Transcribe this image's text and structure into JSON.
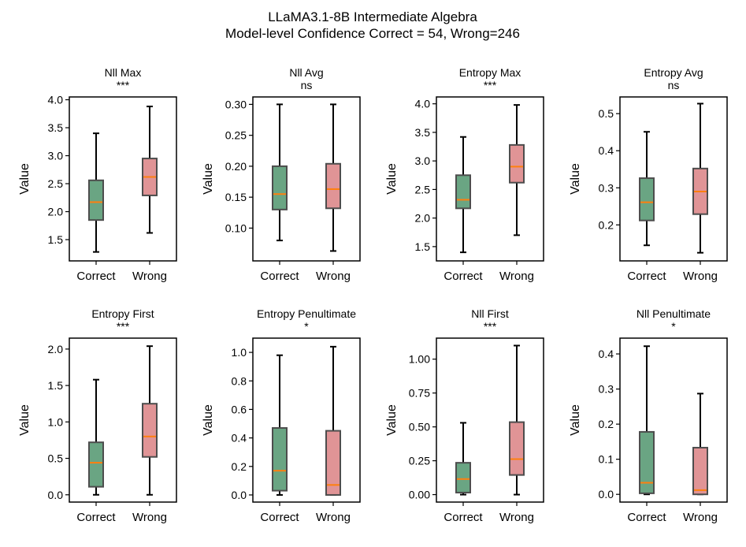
{
  "title_line1": "LLaMA3.1-8B Intermediate Algebra",
  "title_line2": "Model-level Confidence Correct = 54, Wrong=246",
  "colors": {
    "correct": "#6aa583",
    "wrong": "#e09496",
    "median": "#ff7f0e",
    "edge": "#4d4d4d"
  },
  "chart_data": [
    {
      "type": "box",
      "title": "Nll Max",
      "significance": "***",
      "ylabel": "Value",
      "categories": [
        "Correct",
        "Wrong"
      ],
      "ylim": [
        1.12,
        4.05
      ],
      "yticks": [
        1.5,
        2.0,
        2.5,
        3.0,
        3.5,
        4.0
      ],
      "tick_labels": [
        "1.5",
        "2.0",
        "2.5",
        "3.0",
        "3.5",
        "4.0"
      ],
      "boxes": [
        {
          "whislo": 1.28,
          "q1": 1.85,
          "med": 2.17,
          "q3": 2.56,
          "whishi": 3.4
        },
        {
          "whislo": 1.62,
          "q1": 2.29,
          "med": 2.62,
          "q3": 2.95,
          "whishi": 3.88
        }
      ]
    },
    {
      "type": "box",
      "title": "Nll Avg",
      "significance": "ns",
      "ylabel": "Value",
      "categories": [
        "Correct",
        "Wrong"
      ],
      "ylim": [
        0.047,
        0.312
      ],
      "yticks": [
        0.1,
        0.15,
        0.2,
        0.25,
        0.3
      ],
      "tick_labels": [
        "0.10",
        "0.15",
        "0.20",
        "0.25",
        "0.30"
      ],
      "boxes": [
        {
          "whislo": 0.08,
          "q1": 0.13,
          "med": 0.155,
          "q3": 0.2,
          "whishi": 0.3
        },
        {
          "whislo": 0.063,
          "q1": 0.132,
          "med": 0.163,
          "q3": 0.204,
          "whishi": 0.3
        }
      ]
    },
    {
      "type": "box",
      "title": "Entropy Max",
      "significance": "***",
      "ylabel": "Value",
      "categories": [
        "Correct",
        "Wrong"
      ],
      "ylim": [
        1.25,
        4.12
      ],
      "yticks": [
        1.5,
        2.0,
        2.5,
        3.0,
        3.5,
        4.0
      ],
      "tick_labels": [
        "1.5",
        "2.0",
        "2.5",
        "3.0",
        "3.5",
        "4.0"
      ],
      "boxes": [
        {
          "whislo": 1.4,
          "q1": 2.17,
          "med": 2.32,
          "q3": 2.75,
          "whishi": 3.42
        },
        {
          "whislo": 1.7,
          "q1": 2.62,
          "med": 2.9,
          "q3": 3.28,
          "whishi": 3.98
        }
      ]
    },
    {
      "type": "box",
      "title": "Entropy Avg",
      "significance": "ns",
      "ylabel": "Value",
      "categories": [
        "Correct",
        "Wrong"
      ],
      "ylim": [
        0.103,
        0.545
      ],
      "yticks": [
        0.2,
        0.3,
        0.4,
        0.5
      ],
      "tick_labels": [
        "0.2",
        "0.3",
        "0.4",
        "0.5"
      ],
      "boxes": [
        {
          "whislo": 0.145,
          "q1": 0.212,
          "med": 0.261,
          "q3": 0.326,
          "whishi": 0.451
        },
        {
          "whislo": 0.125,
          "q1": 0.229,
          "med": 0.29,
          "q3": 0.352,
          "whishi": 0.527
        }
      ]
    },
    {
      "type": "box",
      "title": "Entropy First",
      "significance": "***",
      "ylabel": "Value",
      "categories": [
        "Correct",
        "Wrong"
      ],
      "ylim": [
        -0.1,
        2.15
      ],
      "yticks": [
        0.0,
        0.5,
        1.0,
        1.5,
        2.0
      ],
      "tick_labels": [
        "0.0",
        "0.5",
        "1.0",
        "1.5",
        "2.0"
      ],
      "boxes": [
        {
          "whislo": 0.0,
          "q1": 0.11,
          "med": 0.44,
          "q3": 0.72,
          "whishi": 1.58
        },
        {
          "whislo": 0.0,
          "q1": 0.52,
          "med": 0.8,
          "q3": 1.25,
          "whishi": 2.04
        }
      ]
    },
    {
      "type": "box",
      "title": "Entropy Penultimate",
      "significance": "*",
      "ylabel": "Value",
      "categories": [
        "Correct",
        "Wrong"
      ],
      "ylim": [
        -0.05,
        1.1
      ],
      "yticks": [
        0.0,
        0.2,
        0.4,
        0.6,
        0.8,
        1.0
      ],
      "tick_labels": [
        "0.0",
        "0.2",
        "0.4",
        "0.6",
        "0.8",
        "1.0"
      ],
      "boxes": [
        {
          "whislo": 0.0,
          "q1": 0.03,
          "med": 0.17,
          "q3": 0.47,
          "whishi": 0.98
        },
        {
          "whislo": 0.0,
          "q1": 0.0,
          "med": 0.07,
          "q3": 0.45,
          "whishi": 1.04
        }
      ]
    },
    {
      "type": "box",
      "title": "Nll First",
      "significance": "***",
      "ylabel": "Value",
      "categories": [
        "Correct",
        "Wrong"
      ],
      "ylim": [
        -0.055,
        1.155
      ],
      "yticks": [
        0.0,
        0.25,
        0.5,
        0.75,
        1.0
      ],
      "tick_labels": [
        "0.00",
        "0.25",
        "0.50",
        "0.75",
        "1.00"
      ],
      "boxes": [
        {
          "whislo": 0.0,
          "q1": 0.015,
          "med": 0.115,
          "q3": 0.235,
          "whishi": 0.53
        },
        {
          "whislo": 0.0,
          "q1": 0.145,
          "med": 0.262,
          "q3": 0.535,
          "whishi": 1.1
        }
      ]
    },
    {
      "type": "box",
      "title": "Nll Penultimate",
      "significance": "*",
      "ylabel": "Value",
      "categories": [
        "Correct",
        "Wrong"
      ],
      "ylim": [
        -0.022,
        0.445
      ],
      "yticks": [
        0.0,
        0.1,
        0.2,
        0.3,
        0.4
      ],
      "tick_labels": [
        "0.0",
        "0.1",
        "0.2",
        "0.3",
        "0.4"
      ],
      "boxes": [
        {
          "whislo": 0.0,
          "q1": 0.003,
          "med": 0.033,
          "q3": 0.178,
          "whishi": 0.422
        },
        {
          "whislo": 0.0,
          "q1": 0.0,
          "med": 0.012,
          "q3": 0.133,
          "whishi": 0.287
        }
      ]
    }
  ]
}
